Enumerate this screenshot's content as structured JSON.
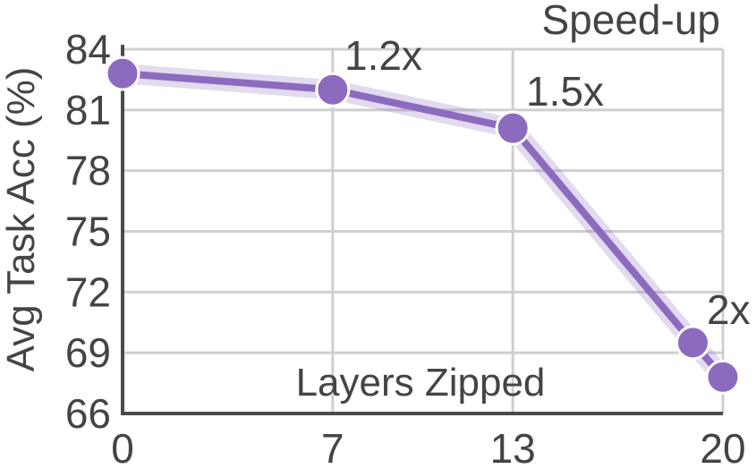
{
  "chart_data": {
    "type": "line",
    "xlabel": "Layers Zipped",
    "ylabel": "Avg Task Acc (%)",
    "xlim": [
      0,
      20
    ],
    "ylim": [
      66,
      84
    ],
    "xticks": [
      0,
      7,
      13,
      20
    ],
    "yticks": [
      66,
      69,
      72,
      75,
      78,
      81,
      84
    ],
    "grid": true,
    "series": [
      {
        "x": [
          0,
          7,
          13,
          19,
          20
        ],
        "y": [
          82.8,
          82.0,
          80.1,
          69.5,
          67.8
        ],
        "color": "#8c6bbf"
      }
    ],
    "annotations": [
      {
        "text": "Speed-up"
      },
      {
        "text": "1.2x",
        "x": 7,
        "y": 82.0
      },
      {
        "text": "1.5x",
        "x": 13,
        "y": 80.1
      },
      {
        "text": "2x",
        "x": 19,
        "y": 69.5
      }
    ]
  }
}
